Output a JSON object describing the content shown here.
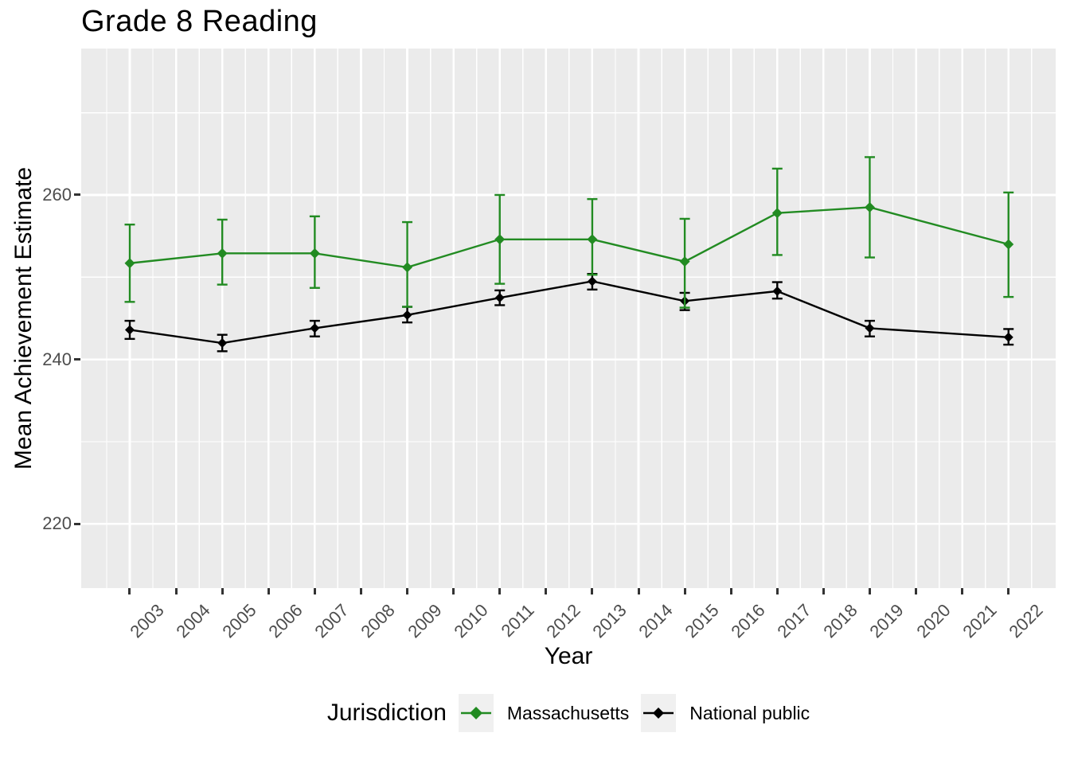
{
  "chart_data": {
    "type": "line",
    "title": "Grade 8 Reading",
    "xlabel": "Year",
    "ylabel": "Mean Achievement Estimate",
    "legend_title": "Jurisdiction",
    "legend_position": "bottom",
    "grid": true,
    "panel_bg": "#EBEBEB",
    "grid_color": "#FFFFFF",
    "tick_color": "#333333",
    "tick_label_color": "#4D4D4D",
    "xlim": [
      2001.95,
      2023.02
    ],
    "ylim": [
      212.2,
      277.8
    ],
    "x_ticks": [
      2003,
      2004,
      2005,
      2006,
      2007,
      2008,
      2009,
      2010,
      2011,
      2012,
      2013,
      2014,
      2015,
      2016,
      2017,
      2018,
      2019,
      2020,
      2021,
      2022
    ],
    "y_ticks": [
      220,
      240,
      260
    ],
    "y_minor_ticks": [
      230,
      250,
      270
    ],
    "x": [
      2003,
      2005,
      2007,
      2009,
      2011,
      2013,
      2015,
      2017,
      2019,
      2022
    ],
    "series": [
      {
        "name": "Massachusetts",
        "color": "#228B22",
        "values": [
          251.7,
          252.9,
          252.9,
          251.2,
          254.6,
          254.6,
          251.9,
          257.8,
          258.5,
          254.0
        ],
        "ci_low": [
          247.0,
          249.1,
          248.7,
          246.4,
          249.2,
          250.3,
          246.3,
          252.7,
          252.4,
          247.6
        ],
        "ci_high": [
          256.4,
          257.0,
          257.4,
          256.7,
          260.0,
          259.5,
          257.1,
          263.2,
          264.6,
          260.3
        ]
      },
      {
        "name": "National public",
        "color": "#000000",
        "values": [
          243.6,
          242.0,
          243.8,
          245.4,
          247.5,
          249.5,
          247.1,
          248.3,
          243.8,
          242.7
        ],
        "ci_low": [
          242.5,
          241.0,
          242.8,
          244.5,
          246.6,
          248.5,
          246.0,
          247.4,
          242.8,
          241.8
        ],
        "ci_high": [
          244.7,
          243.0,
          244.7,
          246.4,
          248.4,
          250.4,
          248.1,
          249.4,
          244.7,
          243.7
        ]
      }
    ]
  }
}
